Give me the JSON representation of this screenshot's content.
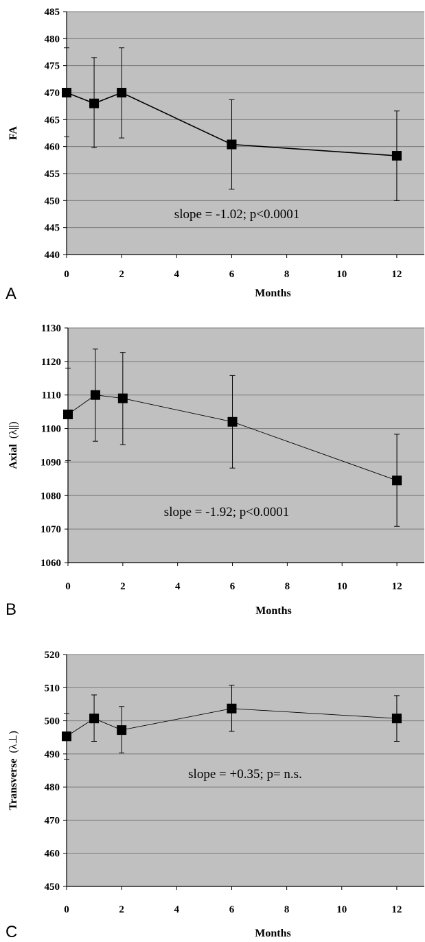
{
  "chart_data": [
    {
      "type": "line",
      "panel_label": "A",
      "ylabel": "FA",
      "ylabel_suffix": "",
      "xlabel": "Months",
      "xlim": [
        0,
        13
      ],
      "xticks": [
        0,
        2,
        4,
        6,
        8,
        10,
        12
      ],
      "ylim": [
        440,
        485
      ],
      "yticks": [
        440,
        445,
        450,
        455,
        460,
        465,
        470,
        475,
        480,
        485
      ],
      "x": [
        0,
        1,
        2,
        6,
        12
      ],
      "values": [
        470.0,
        468.0,
        470.0,
        460.4,
        458.3
      ],
      "error_low": [
        461.8,
        459.8,
        461.6,
        452.1,
        450.0
      ],
      "error_high": [
        478.3,
        476.5,
        478.3,
        468.7,
        466.6
      ],
      "annotation": "slope = -1.02; p<0.0001",
      "grid": true
    },
    {
      "type": "line",
      "panel_label": "B",
      "ylabel": "Axial",
      "ylabel_suffix": "(λ||)",
      "xlabel": "Months",
      "xlim": [
        0,
        13
      ],
      "xticks": [
        0,
        2,
        4,
        6,
        8,
        10,
        12
      ],
      "ylim": [
        1060,
        1130
      ],
      "yticks": [
        1060,
        1070,
        1080,
        1090,
        1100,
        1110,
        1120,
        1130
      ],
      "x": [
        0,
        1,
        2,
        6,
        12
      ],
      "values": [
        1104.2,
        1110.0,
        1109.0,
        1102.0,
        1084.5
      ],
      "error_low": [
        1090.4,
        1096.2,
        1095.2,
        1088.2,
        1070.8
      ],
      "error_high": [
        1118.0,
        1123.7,
        1122.7,
        1115.8,
        1098.3
      ],
      "annotation": "slope = -1.92; p<0.0001",
      "grid": true
    },
    {
      "type": "line",
      "panel_label": "C",
      "ylabel": "Transverse",
      "ylabel_suffix": "(λ⊥)",
      "xlabel": "Months",
      "xlim": [
        0,
        13
      ],
      "xticks": [
        0,
        2,
        4,
        6,
        8,
        10,
        12
      ],
      "ylim": [
        450,
        520
      ],
      "yticks": [
        450,
        460,
        470,
        480,
        490,
        500,
        510,
        520
      ],
      "x": [
        0,
        1,
        2,
        6,
        12
      ],
      "values": [
        495.3,
        500.7,
        497.2,
        503.7,
        500.7
      ],
      "error_low": [
        488.4,
        493.8,
        490.3,
        496.8,
        493.8
      ],
      "error_high": [
        502.2,
        507.8,
        504.3,
        510.7,
        507.6
      ],
      "annotation": "slope = +0.35; p= n.s.",
      "grid": true
    }
  ],
  "colors": {
    "plot_background": "#c0c0c0",
    "gridline": "#7a7a7a",
    "marker": "#000000",
    "line": "#000000"
  }
}
